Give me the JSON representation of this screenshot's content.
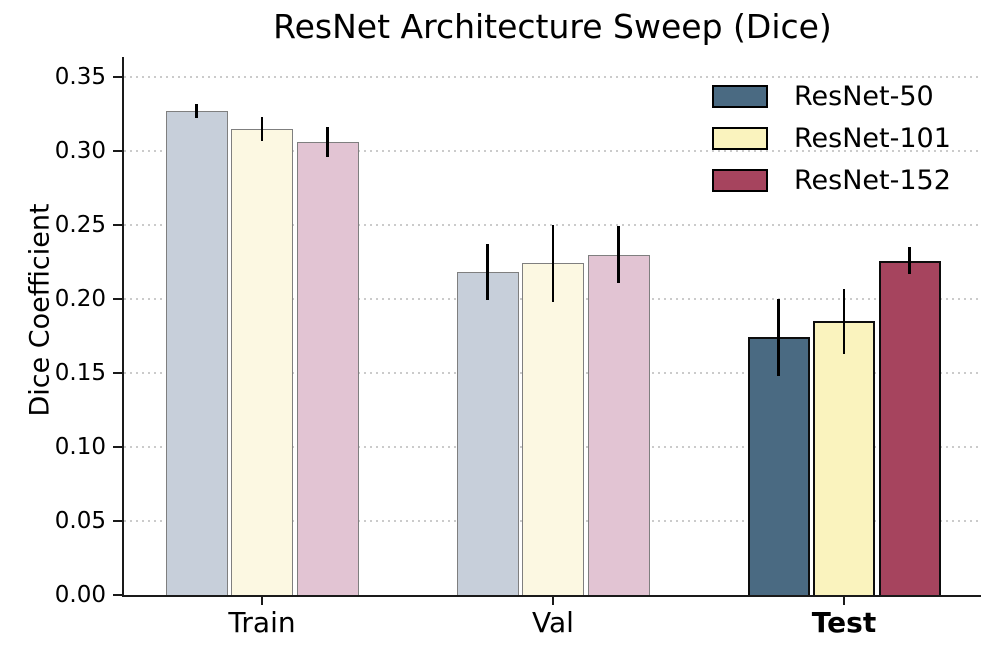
{
  "chart_data": {
    "type": "bar",
    "title": "ResNet Architecture Sweep (Dice)",
    "ylabel": "Dice Coefficient",
    "xlabel": "",
    "categories": [
      "Train",
      "Val",
      "Test"
    ],
    "highlight_category": "Test",
    "series": [
      {
        "name": "ResNet-50",
        "color": "#4A6A82",
        "muted_color": "#C7CFDA",
        "values": [
          0.327,
          0.218,
          0.174
        ],
        "errors": [
          0.005,
          0.019,
          0.026
        ]
      },
      {
        "name": "ResNet-101",
        "color": "#FAF3BE",
        "muted_color": "#FCF8E2",
        "values": [
          0.315,
          0.224,
          0.185
        ],
        "errors": [
          0.008,
          0.026,
          0.022
        ]
      },
      {
        "name": "ResNet-152",
        "color": "#A6445E",
        "muted_color": "#E2C4D3",
        "values": [
          0.306,
          0.23,
          0.226
        ],
        "errors": [
          0.01,
          0.019,
          0.009
        ]
      }
    ],
    "yticks": [
      0.0,
      0.05,
      0.1,
      0.15,
      0.2,
      0.25,
      0.3,
      0.35
    ],
    "ylim": [
      0,
      0.3635
    ],
    "grid": {
      "axis": "y",
      "style": "dotted",
      "color": "#cbcbcb"
    },
    "legend": {
      "position": "upper right",
      "frame": false
    },
    "error_bars": true,
    "bar_edge_color": "#0d0d0d",
    "muted_edge_color": "#7f7f7f"
  }
}
